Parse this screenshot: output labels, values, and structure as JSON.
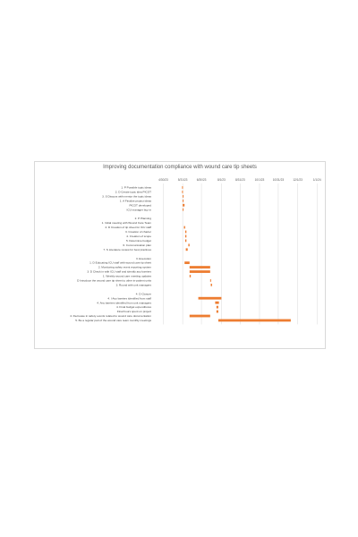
{
  "chart_data": {
    "type": "bar",
    "subtype": "gantt",
    "title": "Improving documentation compliance with wound care tip sheets",
    "x_ticks": [
      "4/30/23",
      "5/31/23",
      "6/30/23",
      "8/1/23",
      "8/31/23",
      "10/1/23",
      "10/31/23",
      "12/1/23",
      "1/1/24"
    ],
    "xlim": [
      "4/15/23",
      "1/5/24"
    ],
    "grid": true,
    "bar_color": "#ed7d31",
    "rows": [
      {
        "label": "1. P Possible topic ideas",
        "start": "5/30/23",
        "end": "5/31/23"
      },
      {
        "label": "2. D Create topic idea PICOT",
        "start": "5/30/23",
        "end": "5/31/23"
      },
      {
        "label": "3. S Discuss with mentor the topic ideas",
        "start": "5/31/23",
        "end": "6/1/23"
      },
      {
        "label": "1. A Finalize project ideas",
        "start": "5/31/23",
        "end": "6/1/23"
      },
      {
        "label": "PICOT developed",
        "start": "5/31/23",
        "end": "6/3/23"
      },
      {
        "label": "ICU manager buy in",
        "start": "5/31/23",
        "end": "6/1/23"
      },
      {
        "label": "",
        "gap": true
      },
      {
        "label": "2. P Planning",
        "start": null,
        "end": null
      },
      {
        "label": "1. Initial meeting with Wound Care Team",
        "start": null,
        "end": null
      },
      {
        "label": "2. D Creation of tip sheet for ICU staff",
        "start": "6/2/23",
        "end": "6/4/23"
      },
      {
        "label": "3. Creation of charter",
        "start": "6/4/23",
        "end": "6/6/23"
      },
      {
        "label": "4. Creation of scope",
        "start": "6/4/23",
        "end": "6/6/23"
      },
      {
        "label": "5. Determine budget",
        "start": "6/4/23",
        "end": "6/6/23"
      },
      {
        "label": "6. Communication plan",
        "start": "6/9/23",
        "end": "6/11/23"
      },
      {
        "label": "7. S Literature review for best practices",
        "start": "6/5/23",
        "end": "6/8/23"
      },
      {
        "label": "",
        "gap": true
      },
      {
        "label": "3. Execution",
        "start": null,
        "end": null
      },
      {
        "label": "1. D Educating ICU staff with wound care tip sheet",
        "start": "6/3/23",
        "end": "6/11/23"
      },
      {
        "label": "2. Monitoring safety event reporting system",
        "start": "6/11/23",
        "end": "7/14/23"
      },
      {
        "label": "3. D Check in with ICU staff and identify any barriers",
        "start": "6/11/23",
        "end": "7/14/23"
      },
      {
        "label": "1. Weekly wound care meeting updates",
        "start": "6/11/23",
        "end": "6/13/23"
      },
      {
        "label": "D Introduce the wound care tip sheet to other in-patient units",
        "start": "7/14/23",
        "end": "7/15/23"
      },
      {
        "label": "3. Round with unit managers",
        "start": "7/15/23",
        "end": "7/17/23"
      },
      {
        "label": "",
        "gap": true
      },
      {
        "label": "4. D Closure",
        "start": null,
        "end": null
      },
      {
        "label": "4. I Any barriers identified from staff",
        "start": "6/25/23",
        "end": "8/1/23"
      },
      {
        "label": "4. Any barriers identified from unit managers",
        "start": "7/22/23",
        "end": "7/28/23"
      },
      {
        "label": "4. Final budget expenditures",
        "start": "7/24/23",
        "end": "7/27/23"
      },
      {
        "label": "Final hours spent on project",
        "start": "7/24/23",
        "end": "7/27/23"
      },
      {
        "label": "4. Decrease in safety events related to wound care documentation",
        "start": "6/11/23",
        "end": "7/14/23"
      },
      {
        "label": "5. Be a regular part of the wound care team monthly meetings",
        "start": "7/27/23",
        "end": "11/20/23"
      }
    ]
  }
}
